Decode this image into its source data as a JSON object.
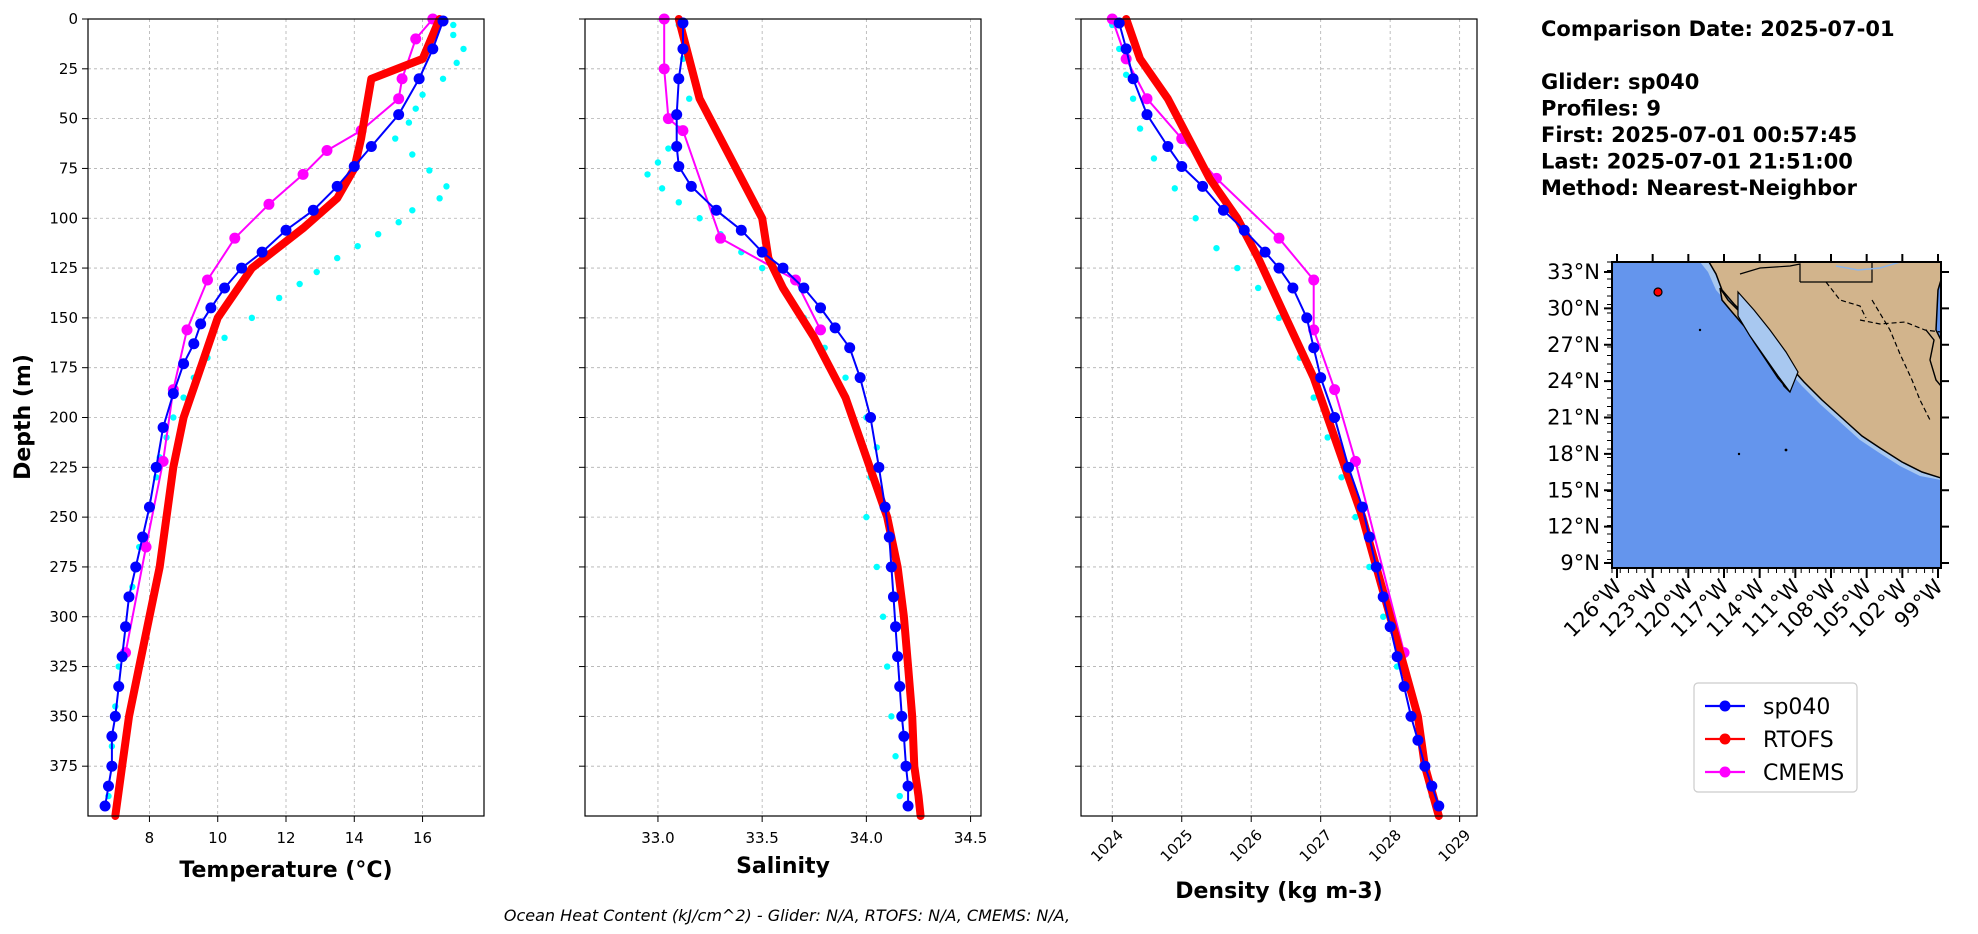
{
  "chart_data": [
    {
      "type": "line",
      "xlabel": "Temperature (°C)",
      "ylabel": "Depth (m)",
      "xlim": [
        6.2,
        17.8
      ],
      "ylim": [
        400,
        0
      ],
      "y_inverted": true,
      "xticks": [
        8,
        10,
        12,
        14,
        16
      ],
      "yticks": [
        0,
        25,
        50,
        75,
        100,
        125,
        150,
        175,
        200,
        225,
        250,
        275,
        300,
        325,
        350,
        375
      ],
      "grid": true,
      "series": [
        {
          "name": "sp040",
          "color": "#0000ff",
          "x": [
            16.6,
            16.3,
            15.9,
            15.3,
            14.5,
            14.0,
            13.5,
            12.8,
            12.0,
            11.3,
            10.7,
            10.2,
            9.8,
            9.5,
            9.3,
            9.0,
            8.7,
            8.4,
            8.2,
            8.0,
            7.8,
            7.6,
            7.4,
            7.3,
            7.2,
            7.1,
            7.0,
            6.9,
            6.9,
            6.8,
            6.7
          ],
          "y": [
            1,
            15,
            30,
            48,
            64,
            74,
            84,
            96,
            106,
            117,
            125,
            135,
            145,
            153,
            163,
            173,
            188,
            205,
            225,
            245,
            260,
            275,
            290,
            305,
            320,
            335,
            350,
            360,
            375,
            385,
            395
          ]
        },
        {
          "name": "RTOFS",
          "color": "#ff0000",
          "x": [
            16.5,
            16.0,
            14.5,
            14.3,
            14.2,
            14.0,
            13.5,
            12.5,
            11.0,
            10.0,
            9.5,
            9.0,
            8.7,
            8.5,
            8.3,
            8.0,
            7.7,
            7.4,
            7.2,
            7.0
          ],
          "y": [
            0,
            20,
            30,
            50,
            60,
            75,
            90,
            105,
            125,
            150,
            175,
            200,
            225,
            250,
            275,
            300,
            325,
            350,
            375,
            400
          ]
        },
        {
          "name": "CMEMS",
          "color": "#ff00ff",
          "x": [
            16.3,
            15.8,
            15.4,
            15.3,
            14.2,
            13.2,
            12.5,
            11.5,
            10.5,
            9.7,
            9.1,
            8.7,
            8.4,
            7.9,
            7.3
          ],
          "y": [
            0,
            10,
            30,
            40,
            56,
            66,
            78,
            93,
            110,
            131,
            156,
            186,
            222,
            265,
            318
          ]
        },
        {
          "name": "glider profiles",
          "color": "#00ffff",
          "marker_only": true,
          "x": [
            16.9,
            16.9,
            17.2,
            17.0,
            16.6,
            16.0,
            15.8,
            15.6,
            15.2,
            15.7,
            16.2,
            16.7,
            16.5,
            15.7,
            15.3,
            14.7,
            14.1,
            13.5,
            12.9,
            12.4,
            11.8,
            11.0,
            10.2,
            9.7,
            9.3,
            9.0,
            8.7,
            8.5,
            8.3,
            8.2,
            8.0,
            7.7,
            7.5,
            7.3,
            7.1,
            7.0,
            6.9,
            6.8
          ],
          "y": [
            3,
            8,
            15,
            22,
            30,
            38,
            45,
            52,
            60,
            68,
            76,
            84,
            90,
            96,
            102,
            108,
            114,
            120,
            127,
            133,
            140,
            150,
            160,
            170,
            180,
            190,
            200,
            210,
            220,
            230,
            245,
            265,
            285,
            305,
            325,
            345,
            365,
            390
          ]
        }
      ]
    },
    {
      "type": "line",
      "xlabel": "Salinity",
      "xlim": [
        32.65,
        34.55
      ],
      "ylim": [
        400,
        0
      ],
      "y_inverted": true,
      "xticks": [
        "33.0",
        "33.5",
        "34.0",
        "34.5"
      ],
      "xtick_values": [
        33.0,
        33.5,
        34.0,
        34.5
      ],
      "grid": true,
      "series": [
        {
          "name": "sp040",
          "color": "#0000ff",
          "x": [
            33.12,
            33.12,
            33.1,
            33.09,
            33.09,
            33.1,
            33.16,
            33.28,
            33.4,
            33.5,
            33.6,
            33.7,
            33.78,
            33.85,
            33.92,
            33.97,
            34.02,
            34.06,
            34.09,
            34.11,
            34.12,
            34.13,
            34.14,
            34.15,
            34.16,
            34.17,
            34.18,
            34.19,
            34.2,
            34.2
          ],
          "y": [
            2,
            15,
            30,
            48,
            64,
            74,
            84,
            96,
            106,
            117,
            125,
            135,
            145,
            155,
            165,
            180,
            200,
            225,
            245,
            260,
            275,
            290,
            305,
            320,
            335,
            350,
            360,
            375,
            385,
            395
          ]
        },
        {
          "name": "RTOFS",
          "color": "#ff0000",
          "x": [
            33.1,
            33.15,
            33.2,
            33.3,
            33.4,
            33.5,
            33.53,
            33.6,
            33.75,
            33.9,
            34.0,
            34.1,
            34.15,
            34.18,
            34.2,
            34.22,
            34.23,
            34.25,
            34.26
          ],
          "y": [
            0,
            20,
            40,
            60,
            80,
            100,
            120,
            135,
            160,
            190,
            220,
            250,
            275,
            300,
            325,
            350,
            375,
            390,
            400
          ]
        },
        {
          "name": "CMEMS",
          "color": "#ff00ff",
          "x": [
            33.03,
            33.03,
            33.05,
            33.12,
            33.3,
            33.66,
            33.78
          ],
          "y": [
            0,
            25,
            50,
            56,
            110,
            131,
            156
          ]
        },
        {
          "name": "glider profiles",
          "color": "#00ffff",
          "marker_only": true,
          "x": [
            33.1,
            33.12,
            33.15,
            33.1,
            33.05,
            33.0,
            32.95,
            33.02,
            33.1,
            33.2,
            33.3,
            33.4,
            33.5,
            33.6,
            33.7,
            33.8,
            33.9,
            34.0,
            34.05,
            34.02,
            34.0,
            34.05,
            34.08,
            34.1,
            34.12,
            34.14,
            34.16
          ],
          "y": [
            3,
            20,
            40,
            55,
            65,
            72,
            78,
            85,
            92,
            100,
            108,
            117,
            125,
            135,
            150,
            165,
            180,
            200,
            215,
            230,
            250,
            275,
            300,
            325,
            350,
            370,
            390
          ]
        }
      ]
    },
    {
      "type": "line",
      "xlabel": "Density (kg m-3)",
      "xlim": [
        1023.55,
        1029.25
      ],
      "ylim": [
        400,
        0
      ],
      "y_inverted": true,
      "xticks": [
        1024,
        1025,
        1026,
        1027,
        1028,
        1029
      ],
      "grid": true,
      "series": [
        {
          "name": "sp040",
          "color": "#0000ff",
          "x": [
            1024.1,
            1024.2,
            1024.3,
            1024.5,
            1024.8,
            1025.0,
            1025.3,
            1025.6,
            1025.9,
            1026.2,
            1026.4,
            1026.6,
            1026.8,
            1026.9,
            1027.0,
            1027.2,
            1027.4,
            1027.6,
            1027.7,
            1027.8,
            1027.9,
            1028.0,
            1028.1,
            1028.2,
            1028.3,
            1028.4,
            1028.5,
            1028.6,
            1028.7
          ],
          "y": [
            2,
            15,
            30,
            48,
            64,
            74,
            84,
            96,
            106,
            117,
            125,
            135,
            150,
            165,
            180,
            200,
            225,
            245,
            260,
            275,
            290,
            305,
            320,
            335,
            350,
            362,
            375,
            385,
            395
          ]
        },
        {
          "name": "RTOFS",
          "color": "#ff0000",
          "x": [
            1024.2,
            1024.4,
            1024.8,
            1025.1,
            1025.4,
            1025.8,
            1026.1,
            1026.5,
            1026.9,
            1027.2,
            1027.6,
            1027.8,
            1028.0,
            1028.2,
            1028.4,
            1028.5,
            1028.7
          ],
          "y": [
            0,
            20,
            40,
            60,
            80,
            100,
            120,
            150,
            180,
            210,
            250,
            275,
            300,
            325,
            350,
            375,
            400
          ]
        },
        {
          "name": "CMEMS",
          "color": "#ff00ff",
          "x": [
            1024.0,
            1024.2,
            1024.5,
            1025.0,
            1025.5,
            1026.4,
            1026.9,
            1026.9,
            1027.2,
            1027.5,
            1028.2
          ],
          "y": [
            0,
            20,
            40,
            60,
            80,
            110,
            131,
            156,
            186,
            222,
            318
          ]
        },
        {
          "name": "glider profiles",
          "color": "#00ffff",
          "marker_only": true,
          "x": [
            1024.0,
            1024.1,
            1024.2,
            1024.3,
            1024.4,
            1024.6,
            1024.9,
            1025.2,
            1025.5,
            1025.8,
            1026.1,
            1026.4,
            1026.7,
            1026.9,
            1027.1,
            1027.3,
            1027.5,
            1027.7,
            1027.9,
            1028.1,
            1028.3,
            1028.5,
            1028.6
          ],
          "y": [
            3,
            15,
            28,
            40,
            55,
            70,
            85,
            100,
            115,
            125,
            135,
            150,
            170,
            190,
            210,
            230,
            250,
            275,
            300,
            325,
            350,
            375,
            390
          ]
        }
      ]
    }
  ],
  "legend": {
    "location": "right",
    "entries": [
      {
        "label": "sp040",
        "color": "#0000ff"
      },
      {
        "label": "RTOFS",
        "color": "#ff0000"
      },
      {
        "label": "CMEMS",
        "color": "#ff00ff"
      }
    ]
  },
  "info": {
    "lines": [
      "Comparison Date: 2025-07-01",
      "",
      "Glider: sp040",
      "Profiles: 9",
      "First: 2025-07-01 00:57:45",
      "Last: 2025-07-01 21:51:00",
      "Method: Nearest-Neighbor"
    ]
  },
  "map": {
    "lat_ticks": [
      "33°N",
      "30°N",
      "27°N",
      "24°N",
      "21°N",
      "18°N",
      "15°N",
      "12°N",
      "9°N"
    ],
    "lon_ticks": [
      "126°W",
      "123°W",
      "120°W",
      "117°W",
      "114°W",
      "111°W",
      "108°W",
      "105°W",
      "102°W",
      "99°W"
    ],
    "ocean_color": "#6495ed",
    "land_color": "#d2b48c",
    "shelf_color": "#a8c8f0",
    "glider_color": "#ff0000"
  },
  "footer": "Ocean Heat Content (kJ/cm^2) - Glider: N/A,  RTOFS: N/A,  CMEMS: N/A,"
}
